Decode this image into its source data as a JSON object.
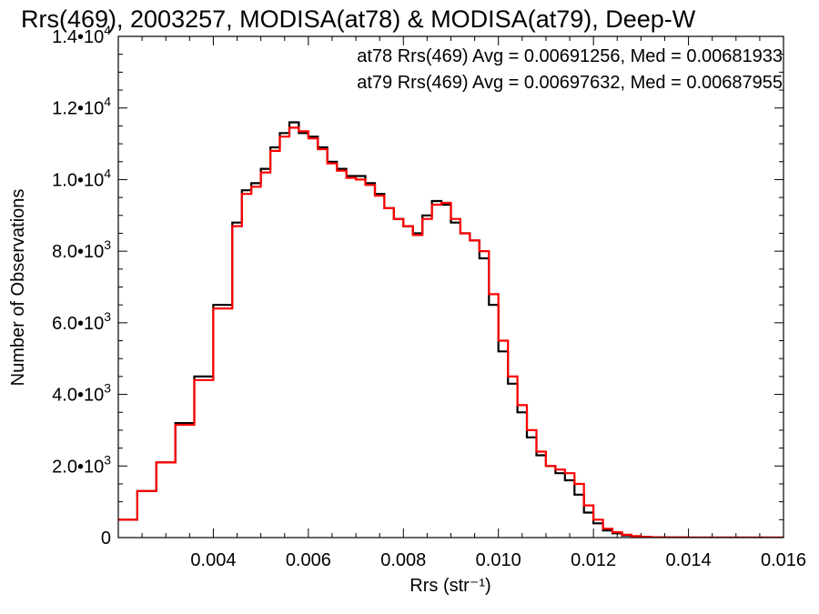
{
  "chart_data": {
    "type": "line",
    "step": true,
    "title": "Rrs(469), 2003257, MODISA(at78) & MODISA(at79), Deep-W",
    "xlabel": "Rrs (str⁻¹)",
    "ylabel": "Number of Observations",
    "xlim": [
      0.002,
      0.016
    ],
    "ylim": [
      0,
      14000
    ],
    "x_ticks": [
      {
        "value": 0.004,
        "label": "0.004"
      },
      {
        "value": 0.006,
        "label": "0.006"
      },
      {
        "value": 0.008,
        "label": "0.008"
      },
      {
        "value": 0.01,
        "label": "0.010"
      },
      {
        "value": 0.012,
        "label": "0.012"
      },
      {
        "value": 0.014,
        "label": "0.014"
      },
      {
        "value": 0.016,
        "label": "0.016"
      }
    ],
    "y_ticks": [
      {
        "value": 0,
        "mant": "0",
        "exp": ""
      },
      {
        "value": 2000,
        "mant": "2.0•10",
        "exp": "3"
      },
      {
        "value": 4000,
        "mant": "4.0•10",
        "exp": "3"
      },
      {
        "value": 6000,
        "mant": "6.0•10",
        "exp": "3"
      },
      {
        "value": 8000,
        "mant": "8.0•10",
        "exp": "3"
      },
      {
        "value": 10000,
        "mant": "1.0•10",
        "exp": "4"
      },
      {
        "value": 12000,
        "mant": "1.2•10",
        "exp": "4"
      },
      {
        "value": 14000,
        "mant": "1.4•10",
        "exp": "4"
      }
    ],
    "annotations": [
      {
        "text": "at78 Rrs(469) Avg = 0.00691256, Med = 0.00681933",
        "color": "#000000"
      },
      {
        "text": "at79 Rrs(469) Avg = 0.00697632, Med = 0.00687955",
        "color": "#ff0000"
      }
    ],
    "series": [
      {
        "color": "#000000",
        "x": [
          0.002,
          0.0024,
          0.0028,
          0.0032,
          0.0036,
          0.004,
          0.0044,
          0.0046,
          0.0048,
          0.005,
          0.0052,
          0.0054,
          0.0056,
          0.0058,
          0.006,
          0.0062,
          0.0064,
          0.0066,
          0.0068,
          0.007,
          0.0072,
          0.0074,
          0.0076,
          0.0078,
          0.008,
          0.0082,
          0.0084,
          0.0086,
          0.0088,
          0.009,
          0.0092,
          0.0094,
          0.0096,
          0.0098,
          0.01,
          0.0102,
          0.0104,
          0.0106,
          0.0108,
          0.011,
          0.0112,
          0.0114,
          0.0116,
          0.0118,
          0.012,
          0.0122,
          0.0124,
          0.0126,
          0.0128,
          0.013,
          0.0132,
          0.0134,
          0.0136,
          0.014,
          0.016
        ],
        "values": [
          500,
          1300,
          2100,
          3200,
          4500,
          6500,
          8800,
          9700,
          9900,
          10300,
          10900,
          11300,
          11600,
          11300,
          11200,
          10900,
          10500,
          10300,
          10100,
          10100,
          9900,
          9600,
          9200,
          8900,
          8700,
          8500,
          9000,
          9400,
          9300,
          8800,
          8500,
          8300,
          7800,
          6500,
          5200,
          4300,
          3500,
          2800,
          2300,
          2000,
          1800,
          1600,
          1200,
          700,
          400,
          200,
          120,
          60,
          30,
          15,
          8,
          4,
          2,
          0,
          0
        ]
      },
      {
        "color": "#ff0000",
        "x": [
          0.002,
          0.0024,
          0.0028,
          0.0032,
          0.0036,
          0.004,
          0.0044,
          0.0046,
          0.0048,
          0.005,
          0.0052,
          0.0054,
          0.0056,
          0.0058,
          0.006,
          0.0062,
          0.0064,
          0.0066,
          0.0068,
          0.007,
          0.0072,
          0.0074,
          0.0076,
          0.0078,
          0.008,
          0.0082,
          0.0084,
          0.0086,
          0.0088,
          0.009,
          0.0092,
          0.0094,
          0.0096,
          0.0098,
          0.01,
          0.0102,
          0.0104,
          0.0106,
          0.0108,
          0.011,
          0.0112,
          0.0114,
          0.0116,
          0.0118,
          0.012,
          0.0122,
          0.0124,
          0.0126,
          0.0128,
          0.013,
          0.0132,
          0.0134,
          0.0136,
          0.014,
          0.016
        ],
        "values": [
          500,
          1300,
          2100,
          3150,
          4400,
          6400,
          8700,
          9600,
          9800,
          10200,
          10800,
          11200,
          11450,
          11350,
          11150,
          10850,
          10450,
          10250,
          10050,
          10000,
          9850,
          9550,
          9200,
          8900,
          8700,
          8450,
          8900,
          9300,
          9350,
          8900,
          8500,
          8300,
          8000,
          6800,
          5500,
          4500,
          3700,
          3000,
          2400,
          2000,
          1900,
          1800,
          1500,
          900,
          500,
          250,
          150,
          80,
          40,
          20,
          10,
          5,
          2,
          0,
          0
        ]
      }
    ]
  }
}
